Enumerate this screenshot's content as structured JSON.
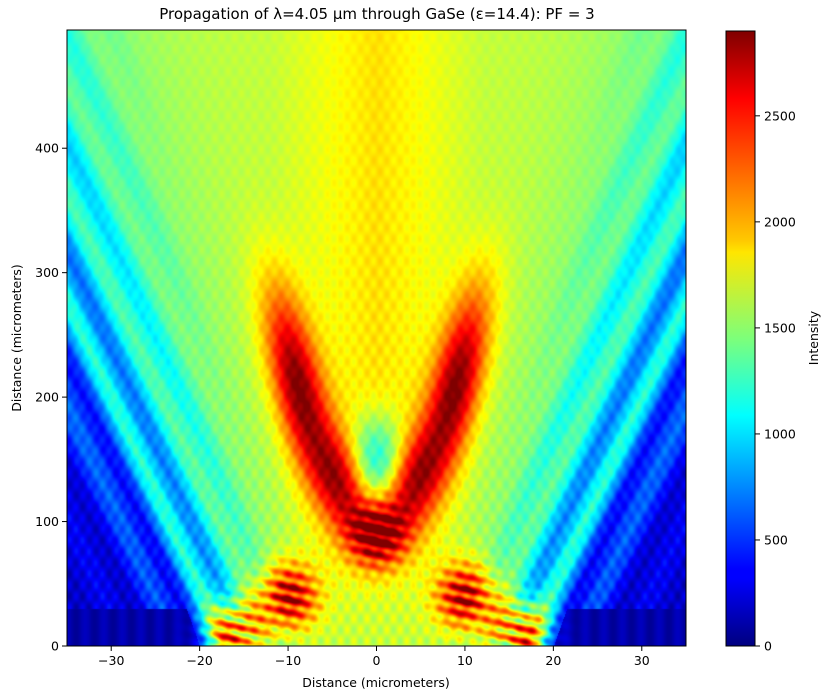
{
  "chart_data": {
    "type": "heatmap",
    "title": "Propagation of λ=4.05 µm through GaSe (ε=14.4): PF = 3",
    "xlabel": "Distance (micrometers)",
    "ylabel": "Distance (micrometers)",
    "xlim": [
      -35,
      35
    ],
    "ylim": [
      0,
      495
    ],
    "x_ticks": [
      -30,
      -20,
      -10,
      0,
      10,
      20,
      30
    ],
    "x_tick_labels": [
      "−30",
      "−20",
      "−10",
      "0",
      "10",
      "20",
      "30"
    ],
    "y_ticks": [
      0,
      100,
      200,
      300,
      400
    ],
    "y_tick_labels": [
      "0",
      "100",
      "200",
      "300",
      "400"
    ],
    "colormap": "jet",
    "grid": false,
    "colorbar": {
      "label": "Intensity",
      "range": [
        0,
        2900
      ],
      "ticks": [
        0,
        500,
        1000,
        1500,
        2000,
        2500
      ],
      "tick_labels": [
        "0",
        "500",
        "1000",
        "1500",
        "2000",
        "2500"
      ]
    },
    "features": [
      {
        "kind": "central-cone",
        "intensity_peak": 1900,
        "x_center": 0,
        "y_range": [
          0,
          495
        ]
      },
      {
        "kind": "lobe",
        "x": -9,
        "y": 210,
        "intensity": 2300
      },
      {
        "kind": "lobe",
        "x": 9,
        "y": 210,
        "intensity": 2300
      },
      {
        "kind": "lobe",
        "x": -4,
        "y": 130,
        "intensity": 2100
      },
      {
        "kind": "lobe",
        "x": 4,
        "y": 130,
        "intensity": 2100
      },
      {
        "kind": "hotspot",
        "x": 0,
        "y": 90,
        "intensity": 2600
      },
      {
        "kind": "hotspot",
        "x": -10,
        "y": 40,
        "intensity": 2600
      },
      {
        "kind": "hotspot",
        "x": 10,
        "y": 40,
        "intensity": 2600
      },
      {
        "kind": "hotspot",
        "x": -16,
        "y": 10,
        "intensity": 2800
      },
      {
        "kind": "hotspot",
        "x": 16,
        "y": 10,
        "intensity": 2800
      }
    ]
  }
}
